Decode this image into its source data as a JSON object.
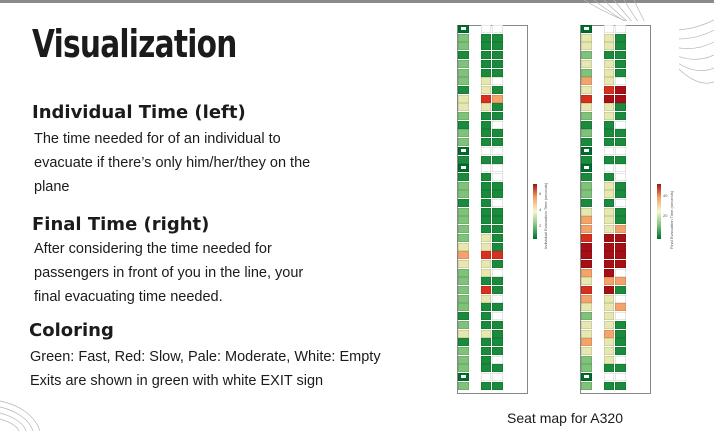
{
  "title": "Visualization",
  "sections": {
    "individual": {
      "heading": "Individual Time (left)",
      "lines": [
        "The time needed for of an individual to",
        "evacuate if there’s only him/her/they on the",
        "plane"
      ]
    },
    "final": {
      "heading": "Final Time (right)",
      "lines": [
        "After considering the time needed for",
        "passengers in front of you in the line, your",
        "final evacuating time needed."
      ]
    },
    "coloring": {
      "heading": "Coloring",
      "lines": [
        "Green: Fast, Red: Slow, Pale: Moderate, White: Empty",
        "Exits are shown in green with white EXIT sign"
      ]
    }
  },
  "seat_map": {
    "caption": "Seat map for A320",
    "left_legend_title": "Individual Evacuation Time (seconds)",
    "right_legend_title": "Final Evacuation Time (seconds)",
    "colors": {
      "g": "#1a8a3c",
      "G": "#006d2c",
      "l": "#7fc27a",
      "y": "#e6e8b0",
      "o": "#f4a46a",
      "r": "#d7301f",
      "R": "#a50f15",
      "w": "#ffffff",
      "e": "#ffffff"
    },
    "left_grid": [
      "Gew",
      "lgg",
      "lgg",
      "ggg",
      "lgg",
      "lgg",
      "lyw",
      "gyg",
      "yro",
      "yyg",
      "lgg",
      "ggw",
      "lgg",
      "lgg",
      "Gew",
      "ggg",
      "Gew",
      "ggw",
      "lgg",
      "lgg",
      "ggw",
      "lgg",
      "lgg",
      "lgg",
      "lyg",
      "yyg",
      "orr",
      "yyg",
      "lyw",
      "lgg",
      "lrg",
      "lyw",
      "lgg",
      "ggw",
      "lgg",
      "yyg",
      "ggg",
      "lgg",
      "lgw",
      "lgg",
      "Gew",
      "lgg"
    ],
    "right_grid": [
      "Gew",
      "yyg",
      "yyg",
      "lgg",
      "yyg",
      "lyg",
      "oyw",
      "yrR",
      "rRR",
      "yyg",
      "lyg",
      "ggw",
      "lgg",
      "ggg",
      "Gew",
      "ggg",
      "Gew",
      "ggw",
      "lyg",
      "lyg",
      "ggw",
      "yyg",
      "oyg",
      "oyo",
      "rRR",
      "RRR",
      "RRR",
      "RRR",
      "oRw",
      "yoo",
      "rRg",
      "oyw",
      "yyo",
      "lyw",
      "yyg",
      "yog",
      "oyg",
      "yyg",
      "lyw",
      "lgg",
      "Gew",
      "lgg"
    ],
    "left_legend_ticks": [
      "6",
      "4",
      "2"
    ],
    "right_legend_ticks": [
      "40",
      "20"
    ]
  }
}
